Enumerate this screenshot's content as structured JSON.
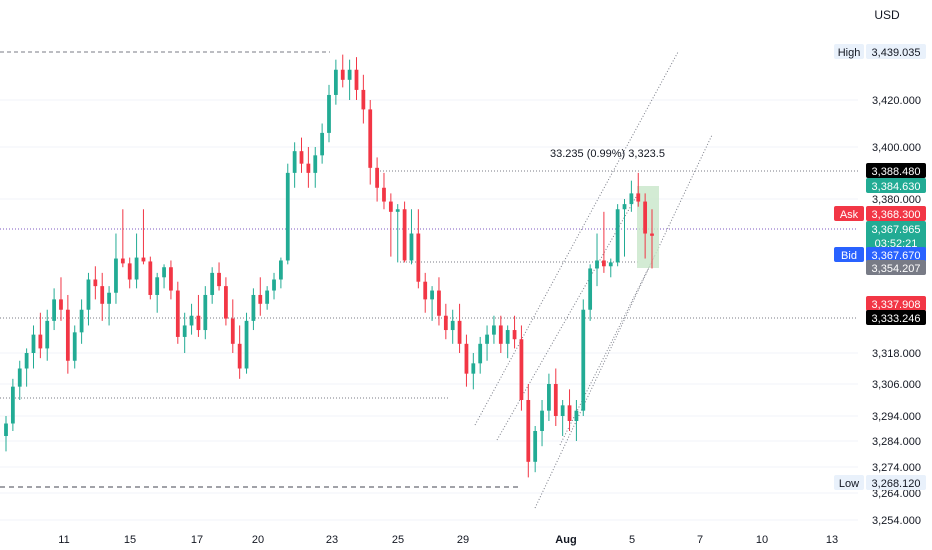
{
  "currency": "USD",
  "chart_data": {
    "type": "candlestick",
    "x_ticks": [
      "11",
      "15",
      "17",
      "20",
      "23",
      "25",
      "29",
      "Aug",
      "5",
      "7",
      "10",
      "13"
    ],
    "y_ticks": [
      3420.0,
      3400.0,
      3380.0,
      3318.0,
      3306.0,
      3294.0,
      3284.0,
      3274.0,
      3264.0,
      3254.0
    ],
    "y_tick_labels": [
      "3,420.000",
      "3,400.000",
      "3,380.000",
      "3,318.000",
      "3,306.000",
      "3,294.000",
      "3,284.000",
      "3,274.000",
      "3,264.000",
      "3,254.000"
    ],
    "price_tags": [
      {
        "prefix": "High",
        "label": "3,439.035",
        "value": 3439.035,
        "bg": "#e9f1fb",
        "fg": "#131722"
      },
      {
        "prefix": "",
        "label": "3,388.480",
        "value": 3388.48,
        "bg": "#000000",
        "fg": "#ffffff"
      },
      {
        "prefix": "",
        "label": "3,384.630",
        "value": 3384.63,
        "bg": "#22ab94",
        "fg": "#ffffff"
      },
      {
        "prefix": "Ask",
        "label": "3,368.300",
        "value": 3368.3,
        "bg": "#f23645",
        "fg": "#ffffff"
      },
      {
        "prefix": "",
        "label": "3,367.965",
        "value": 3367.965,
        "bg": "#22ab94",
        "fg": "#ffffff",
        "sub": "03:52:21"
      },
      {
        "prefix": "Bid",
        "label": "3,367.670",
        "value": 3367.67,
        "bg": "#2962ff",
        "fg": "#ffffff"
      },
      {
        "prefix": "",
        "label": "3,354.207",
        "value": 3354.207,
        "bg": "#787b86",
        "fg": "#ffffff"
      },
      {
        "prefix": "",
        "label": "3,337.908",
        "value": 3337.908,
        "bg": "#f23645",
        "fg": "#ffffff"
      },
      {
        "prefix": "",
        "label": "3,333.246",
        "value": 3333.246,
        "bg": "#000000",
        "fg": "#ffffff"
      },
      {
        "prefix": "Low",
        "label": "3,268.120",
        "value": 3268.12,
        "bg": "#e9f1fb",
        "fg": "#131722"
      }
    ],
    "measure_label": "33.235 (0.99%) 3,323.5",
    "colors": {
      "up": "#22ab94",
      "down": "#f23645",
      "grid": "#f0f3fa",
      "dotted": "#787b86",
      "accent": "#9c27b0"
    },
    "candles": [
      [
        3286,
        3294,
        3280,
        3291
      ],
      [
        3291,
        3308,
        3288,
        3305
      ],
      [
        3305,
        3315,
        3300,
        3312
      ],
      [
        3312,
        3320,
        3305,
        3318
      ],
      [
        3318,
        3330,
        3312,
        3326
      ],
      [
        3326,
        3335,
        3316,
        3320
      ],
      [
        3320,
        3336,
        3315,
        3332
      ],
      [
        3332,
        3345,
        3328,
        3340
      ],
      [
        3340,
        3350,
        3332,
        3336
      ],
      [
        3336,
        3342,
        3310,
        3315
      ],
      [
        3315,
        3330,
        3312,
        3327
      ],
      [
        3327,
        3340,
        3322,
        3336
      ],
      [
        3336,
        3352,
        3330,
        3349
      ],
      [
        3349,
        3356,
        3340,
        3346
      ],
      [
        3346,
        3352,
        3332,
        3338
      ],
      [
        3338,
        3346,
        3330,
        3343
      ],
      [
        3343,
        3368,
        3338,
        3364
      ],
      [
        3364,
        3372,
        3355,
        3359
      ],
      [
        3359,
        3365,
        3345,
        3349
      ],
      [
        3349,
        3368,
        3345,
        3365
      ],
      [
        3365,
        3372,
        3358,
        3361
      ],
      [
        3361,
        3366,
        3340,
        3342
      ],
      [
        3342,
        3352,
        3335,
        3350
      ],
      [
        3350,
        3358,
        3345,
        3355
      ],
      [
        3355,
        3362,
        3340,
        3344
      ],
      [
        3344,
        3348,
        3322,
        3325
      ],
      [
        3325,
        3335,
        3318,
        3330
      ],
      [
        3330,
        3338,
        3326,
        3334
      ],
      [
        3334,
        3342,
        3325,
        3328
      ],
      [
        3328,
        3346,
        3324,
        3342
      ],
      [
        3342,
        3355,
        3338,
        3352
      ],
      [
        3352,
        3360,
        3344,
        3346
      ],
      [
        3346,
        3350,
        3330,
        3333
      ],
      [
        3333,
        3340,
        3318,
        3322
      ],
      [
        3322,
        3330,
        3308,
        3312
      ],
      [
        3312,
        3335,
        3310,
        3332
      ],
      [
        3332,
        3345,
        3328,
        3342
      ],
      [
        3342,
        3350,
        3334,
        3338
      ],
      [
        3338,
        3346,
        3336,
        3344
      ],
      [
        3344,
        3352,
        3340,
        3349
      ],
      [
        3349,
        3365,
        3345,
        3362
      ],
      [
        3362,
        3392,
        3358,
        3388
      ],
      [
        3388,
        3402,
        3384,
        3398
      ],
      [
        3398,
        3404,
        3388,
        3392
      ],
      [
        3392,
        3400,
        3384,
        3388
      ],
      [
        3388,
        3400,
        3384,
        3396
      ],
      [
        3396,
        3410,
        3392,
        3406
      ],
      [
        3406,
        3426,
        3402,
        3422
      ],
      [
        3422,
        3436,
        3418,
        3432
      ],
      [
        3432,
        3438,
        3425,
        3428
      ],
      [
        3428,
        3436,
        3420,
        3432
      ],
      [
        3432,
        3437,
        3420,
        3424
      ],
      [
        3424,
        3430,
        3410,
        3416
      ],
      [
        3416,
        3420,
        3385,
        3390
      ],
      [
        3390,
        3395,
        3378,
        3384
      ],
      [
        3384,
        3388,
        3372,
        3378
      ],
      [
        3378,
        3382,
        3366,
        3370
      ],
      [
        3370,
        3376,
        3360,
        3372
      ],
      [
        3372,
        3378,
        3360,
        3362
      ],
      [
        3362,
        3372,
        3358,
        3368
      ],
      [
        3368,
        3372,
        3345,
        3348
      ],
      [
        3348,
        3352,
        3335,
        3340
      ],
      [
        3340,
        3346,
        3332,
        3344
      ],
      [
        3344,
        3350,
        3330,
        3334
      ],
      [
        3334,
        3338,
        3324,
        3328
      ],
      [
        3328,
        3336,
        3322,
        3332
      ],
      [
        3332,
        3338,
        3318,
        3322
      ],
      [
        3322,
        3326,
        3305,
        3310
      ],
      [
        3310,
        3318,
        3304,
        3314
      ],
      [
        3314,
        3325,
        3310,
        3322
      ],
      [
        3322,
        3330,
        3315,
        3326
      ],
      [
        3326,
        3334,
        3322,
        3330
      ],
      [
        3330,
        3334,
        3318,
        3322
      ],
      [
        3322,
        3330,
        3316,
        3328
      ],
      [
        3328,
        3334,
        3320,
        3324
      ],
      [
        3324,
        3330,
        3296,
        3300
      ],
      [
        3300,
        3306,
        3270,
        3276
      ],
      [
        3276,
        3290,
        3272,
        3288
      ],
      [
        3288,
        3300,
        3282,
        3296
      ],
      [
        3296,
        3310,
        3292,
        3306
      ],
      [
        3306,
        3312,
        3290,
        3294
      ],
      [
        3294,
        3300,
        3286,
        3298
      ],
      [
        3298,
        3304,
        3288,
        3292
      ],
      [
        3292,
        3300,
        3284,
        3296
      ],
      [
        3296,
        3340,
        3294,
        3336
      ],
      [
        3336,
        3358,
        3332,
        3354
      ],
      [
        3354,
        3368,
        3346,
        3362
      ],
      [
        3362,
        3370,
        3352,
        3356
      ],
      [
        3356,
        3364,
        3350,
        3360
      ],
      [
        3360,
        3376,
        3356,
        3372
      ],
      [
        3372,
        3380,
        3366,
        3376
      ],
      [
        3376,
        3386,
        3370,
        3382
      ],
      [
        3382,
        3388,
        3374,
        3378
      ],
      [
        3378,
        3382,
        3364,
        3368
      ],
      [
        3368,
        3372,
        3354,
        3367.965
      ]
    ]
  }
}
